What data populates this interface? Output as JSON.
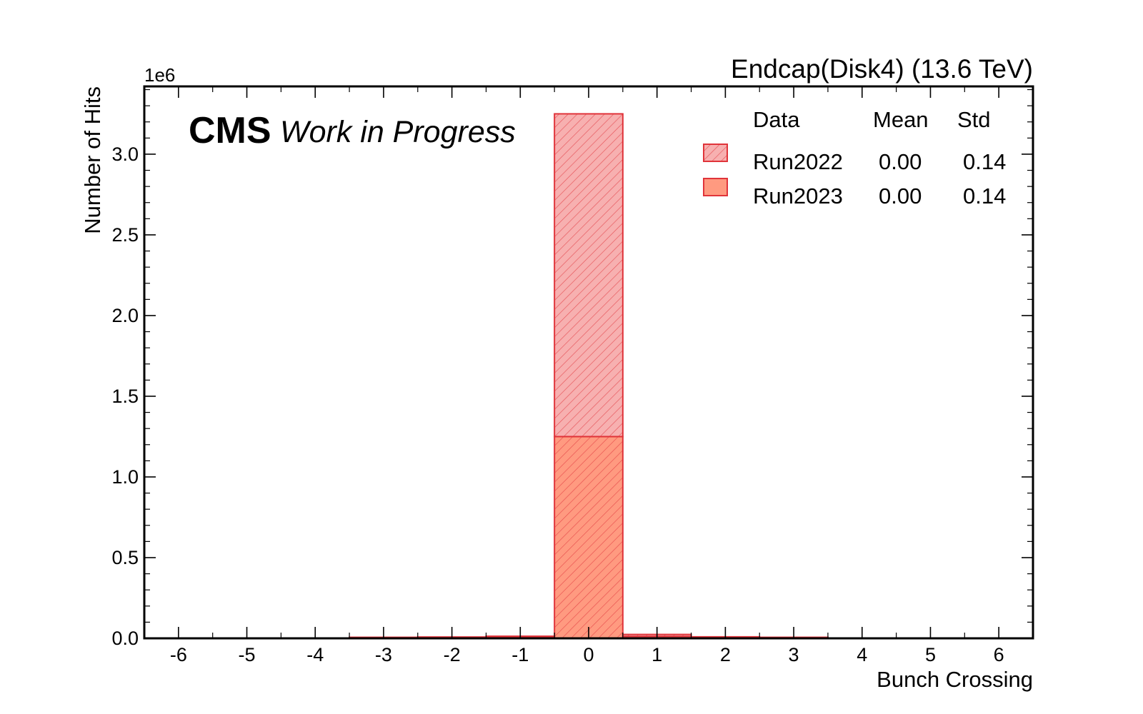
{
  "chart_data": {
    "type": "bar",
    "histtype": "stacked-step-filled",
    "lumi_label": "Endcap(Disk4) (13.6 TeV)",
    "experiment": "CMS",
    "status": "Work in Progress",
    "xlabel": "Bunch Crossing",
    "ylabel": "Number of Hits",
    "y_offset_label": "1e6",
    "xlim": [
      -6.5,
      6.5
    ],
    "ylim": [
      0,
      3.42
    ],
    "x_ticks": [
      -6,
      -5,
      -4,
      -3,
      -2,
      -1,
      0,
      1,
      2,
      3,
      4,
      5,
      6
    ],
    "x_tick_labels": [
      "-6",
      "-5",
      "-4",
      "-3",
      "-2",
      "-1",
      "0",
      "1",
      "2",
      "3",
      "4",
      "5",
      "6"
    ],
    "y_ticks": [
      0,
      0.5,
      1.0,
      1.5,
      2.0,
      2.5,
      3.0
    ],
    "y_tick_labels": [
      "0.0",
      "0.5",
      "1.0",
      "1.5",
      "2.0",
      "2.5",
      "3.0"
    ],
    "grid": false,
    "legend_placement": "top-right",
    "legend_headers": {
      "data": "Data",
      "mean": "Mean",
      "std": "Std"
    },
    "bin_centers": [
      -6,
      -5,
      -4,
      -3,
      -2,
      -1,
      0,
      1,
      2,
      3,
      4,
      5,
      6
    ],
    "series": [
      {
        "name": "Run2023",
        "mean": "0.00",
        "std": "0.14",
        "color": "#ff6e54",
        "fill": "#ff9a80",
        "edge": "#e0343a",
        "hatch": false,
        "values": [
          0,
          0,
          0,
          0.001,
          0.003,
          0.007,
          1.25,
          0.012,
          0.004,
          0.001,
          0,
          0,
          0
        ]
      },
      {
        "name": "Run2022",
        "mean": "0.00",
        "std": "0.14",
        "color": "#f6a4a4",
        "fill": "#f7b0b0",
        "edge": "#e0343a",
        "hatch": true,
        "values": [
          0,
          0,
          0,
          0.001,
          0.002,
          0.006,
          2.0,
          0.012,
          0.004,
          0.001,
          0,
          0,
          0
        ]
      }
    ]
  }
}
